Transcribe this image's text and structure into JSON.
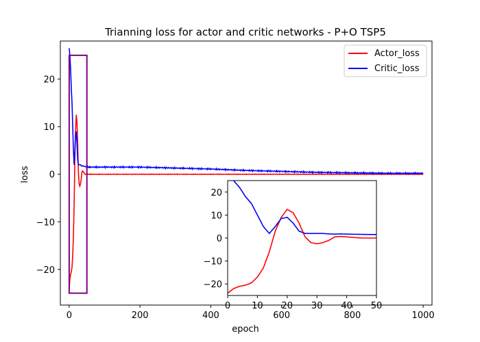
{
  "chart_data": {
    "type": "line",
    "title": "Trianning loss for actor and critic networks - P+O TSP5",
    "xlabel": "epoch",
    "ylabel": "loss",
    "xlim": [
      -25,
      1025
    ],
    "ylim": [
      -27.5,
      28
    ],
    "xticks": [
      0,
      200,
      400,
      600,
      800,
      1000
    ],
    "yticks": [
      -20,
      -10,
      0,
      10,
      20
    ],
    "grid": false,
    "legend_position": "top-right",
    "colors": {
      "actor": "#ff0000",
      "critic": "#0000ff",
      "zoom_box": "#800080"
    },
    "series": [
      {
        "name": "Actor_loss",
        "color": "#ff0000",
        "x": [
          0,
          2,
          4,
          6,
          8,
          10,
          12,
          14,
          16,
          18,
          20,
          22,
          24,
          26,
          28,
          30,
          32,
          34,
          36,
          38,
          40,
          45,
          50,
          60,
          80,
          100,
          150,
          200,
          300,
          400,
          500,
          600,
          700,
          800,
          900,
          1000
        ],
        "y": [
          -24,
          -22,
          -21,
          -20.5,
          -19.5,
          -17,
          -13,
          -6,
          3,
          9,
          12.5,
          11,
          6.5,
          0.5,
          -2,
          -2.5,
          -2,
          -1,
          0.5,
          0.7,
          0.5,
          0,
          0,
          0,
          0,
          0,
          0,
          0,
          0,
          0,
          0,
          0,
          0,
          0,
          0,
          0
        ]
      },
      {
        "name": "Critic_loss",
        "color": "#0000ff",
        "x": [
          0,
          2,
          4,
          6,
          8,
          10,
          12,
          14,
          16,
          18,
          20,
          22,
          24,
          26,
          28,
          30,
          32,
          34,
          36,
          38,
          40,
          45,
          50,
          100,
          200,
          300,
          400,
          500,
          600,
          700,
          800,
          900,
          1000
        ],
        "y": [
          26.5,
          25,
          22,
          18,
          15,
          10,
          5,
          2,
          5,
          8.5,
          9,
          6.5,
          3,
          2,
          2,
          2,
          2,
          1.8,
          1.7,
          1.8,
          1.7,
          1.6,
          1.5,
          1.5,
          1.5,
          1.3,
          1.1,
          0.8,
          0.6,
          0.4,
          0.3,
          0.2,
          0.2
        ]
      }
    ],
    "highlight_box": {
      "x": [
        0,
        50
      ],
      "y": [
        -25,
        25
      ]
    },
    "inset": {
      "xlim": [
        0,
        50
      ],
      "ylim": [
        -25,
        25
      ],
      "xticks": [
        0,
        10,
        20,
        30,
        40,
        50
      ],
      "yticks": [
        -20,
        -10,
        0,
        10,
        20
      ]
    }
  }
}
